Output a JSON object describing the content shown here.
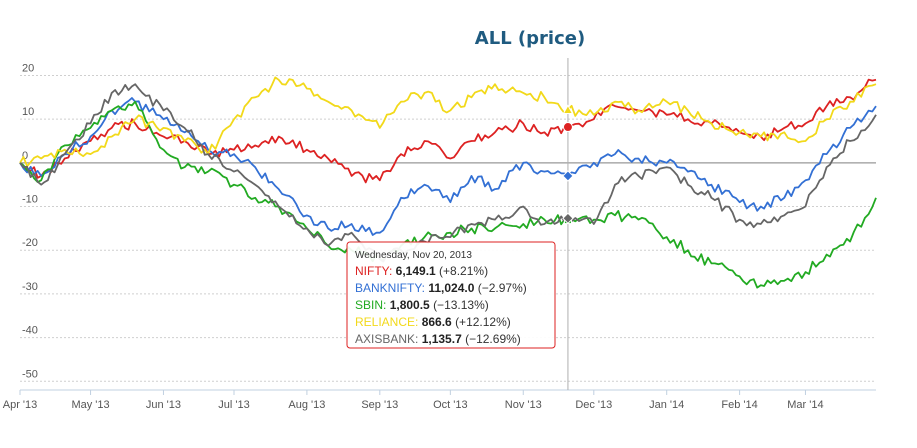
{
  "chart_data": {
    "type": "line",
    "title": "ALL (price)",
    "xlabel": "",
    "ylabel": "",
    "ylim": [
      -52,
      24
    ],
    "grid": "horizontal",
    "y_ticks": [
      20,
      10,
      0,
      -10,
      -20,
      -30,
      -40,
      -50
    ],
    "y_tick_labels": [
      "20",
      "10",
      "0",
      "-10",
      "-20",
      "-30",
      "-40",
      "-50"
    ],
    "x_range": [
      "2013-04-01",
      "2014-03-31"
    ],
    "x_ticks": [
      {
        "date": "2013-04-01",
        "label": "Apr '13"
      },
      {
        "date": "2013-05-01",
        "label": "May '13"
      },
      {
        "date": "2013-06-01",
        "label": "Jun '13"
      },
      {
        "date": "2013-07-01",
        "label": "Jul '13"
      },
      {
        "date": "2013-08-01",
        "label": "Aug '13"
      },
      {
        "date": "2013-09-01",
        "label": "Sep '13"
      },
      {
        "date": "2013-10-01",
        "label": "Oct '13"
      },
      {
        "date": "2013-11-01",
        "label": "Nov '13"
      },
      {
        "date": "2013-12-01",
        "label": "Dec '13"
      },
      {
        "date": "2014-01-01",
        "label": "Jan '14"
      },
      {
        "date": "2014-02-01",
        "label": "Feb '14"
      },
      {
        "date": "2014-03-01",
        "label": "Mar '14"
      }
    ],
    "series": [
      {
        "name": "NIFTY",
        "color": "#dd2222",
        "points": [
          [
            "2013-04-01",
            0
          ],
          [
            "2013-04-10",
            -3
          ],
          [
            "2013-04-20",
            1
          ],
          [
            "2013-05-01",
            5
          ],
          [
            "2013-05-10",
            8
          ],
          [
            "2013-05-20",
            9
          ],
          [
            "2013-06-01",
            6
          ],
          [
            "2013-06-10",
            5
          ],
          [
            "2013-06-20",
            2
          ],
          [
            "2013-07-01",
            3
          ],
          [
            "2013-07-10",
            4
          ],
          [
            "2013-07-20",
            6
          ],
          [
            "2013-08-01",
            3
          ],
          [
            "2013-08-10",
            1
          ],
          [
            "2013-08-20",
            -3
          ],
          [
            "2013-09-01",
            -4
          ],
          [
            "2013-09-10",
            2
          ],
          [
            "2013-09-20",
            5
          ],
          [
            "2013-10-01",
            1
          ],
          [
            "2013-10-10",
            5
          ],
          [
            "2013-10-20",
            7
          ],
          [
            "2013-11-01",
            9
          ],
          [
            "2013-11-10",
            7
          ],
          [
            "2013-11-20",
            8.2
          ],
          [
            "2013-12-01",
            10
          ],
          [
            "2013-12-10",
            13
          ],
          [
            "2013-12-20",
            12
          ],
          [
            "2014-01-01",
            11
          ],
          [
            "2014-01-10",
            10
          ],
          [
            "2014-01-20",
            9
          ],
          [
            "2014-02-01",
            7
          ],
          [
            "2014-02-10",
            6
          ],
          [
            "2014-02-20",
            8
          ],
          [
            "2014-03-01",
            9
          ],
          [
            "2014-03-10",
            13
          ],
          [
            "2014-03-20",
            15
          ],
          [
            "2014-03-31",
            19
          ]
        ]
      },
      {
        "name": "BANKNIFTY",
        "color": "#3370d4",
        "points": [
          [
            "2013-04-01",
            0
          ],
          [
            "2013-04-10",
            -3
          ],
          [
            "2013-04-20",
            2
          ],
          [
            "2013-05-01",
            6
          ],
          [
            "2013-05-10",
            12
          ],
          [
            "2013-05-20",
            14
          ],
          [
            "2013-06-01",
            10
          ],
          [
            "2013-06-10",
            7
          ],
          [
            "2013-06-20",
            3
          ],
          [
            "2013-07-01",
            2
          ],
          [
            "2013-07-10",
            -1
          ],
          [
            "2013-07-20",
            -6
          ],
          [
            "2013-08-01",
            -12
          ],
          [
            "2013-08-10",
            -15
          ],
          [
            "2013-08-20",
            -14
          ],
          [
            "2013-09-01",
            -16
          ],
          [
            "2013-09-10",
            -8
          ],
          [
            "2013-09-20",
            -5
          ],
          [
            "2013-10-01",
            -9
          ],
          [
            "2013-10-10",
            -3
          ],
          [
            "2013-10-20",
            -6
          ],
          [
            "2013-11-01",
            0
          ],
          [
            "2013-11-10",
            -2
          ],
          [
            "2013-11-20",
            -3
          ],
          [
            "2013-12-01",
            0
          ],
          [
            "2013-12-10",
            2
          ],
          [
            "2013-12-20",
            1
          ],
          [
            "2014-01-01",
            0
          ],
          [
            "2014-01-10",
            -2
          ],
          [
            "2014-01-20",
            -5
          ],
          [
            "2014-02-01",
            -9
          ],
          [
            "2014-02-10",
            -10
          ],
          [
            "2014-02-20",
            -8
          ],
          [
            "2014-03-01",
            -4
          ],
          [
            "2014-03-10",
            2
          ],
          [
            "2014-03-20",
            8
          ],
          [
            "2014-03-31",
            13
          ]
        ]
      },
      {
        "name": "SBIN",
        "color": "#22aa22",
        "points": [
          [
            "2013-04-01",
            0
          ],
          [
            "2013-04-10",
            -4
          ],
          [
            "2013-04-20",
            4
          ],
          [
            "2013-05-01",
            8
          ],
          [
            "2013-05-10",
            12
          ],
          [
            "2013-05-20",
            14
          ],
          [
            "2013-06-01",
            3
          ],
          [
            "2013-06-10",
            -1
          ],
          [
            "2013-06-20",
            -2
          ],
          [
            "2013-07-01",
            -5
          ],
          [
            "2013-07-10",
            -8
          ],
          [
            "2013-07-20",
            -10
          ],
          [
            "2013-08-01",
            -15
          ],
          [
            "2013-08-10",
            -19
          ],
          [
            "2013-08-20",
            -20
          ],
          [
            "2013-09-01",
            -22
          ],
          [
            "2013-09-10",
            -19
          ],
          [
            "2013-09-20",
            -17
          ],
          [
            "2013-10-01",
            -16
          ],
          [
            "2013-10-10",
            -15
          ],
          [
            "2013-10-20",
            -15
          ],
          [
            "2013-11-01",
            -14
          ],
          [
            "2013-11-10",
            -13
          ],
          [
            "2013-11-20",
            -13.1
          ],
          [
            "2013-12-01",
            -13
          ],
          [
            "2013-12-10",
            -12
          ],
          [
            "2013-12-20",
            -13
          ],
          [
            "2014-01-01",
            -17
          ],
          [
            "2014-01-10",
            -20
          ],
          [
            "2014-01-20",
            -23
          ],
          [
            "2014-02-01",
            -26
          ],
          [
            "2014-02-10",
            -28
          ],
          [
            "2014-02-20",
            -27
          ],
          [
            "2014-03-01",
            -25
          ],
          [
            "2014-03-10",
            -21
          ],
          [
            "2014-03-20",
            -18
          ],
          [
            "2014-03-31",
            -8
          ]
        ]
      },
      {
        "name": "RELIANCE",
        "color": "#f2d91a",
        "points": [
          [
            "2013-04-01",
            0
          ],
          [
            "2013-04-10",
            1
          ],
          [
            "2013-04-20",
            3
          ],
          [
            "2013-05-01",
            2
          ],
          [
            "2013-05-10",
            6
          ],
          [
            "2013-05-20",
            10
          ],
          [
            "2013-06-01",
            8
          ],
          [
            "2013-06-10",
            5
          ],
          [
            "2013-06-20",
            2
          ],
          [
            "2013-07-01",
            10
          ],
          [
            "2013-07-10",
            15
          ],
          [
            "2013-07-20",
            19
          ],
          [
            "2013-08-01",
            17
          ],
          [
            "2013-08-10",
            14
          ],
          [
            "2013-08-20",
            12
          ],
          [
            "2013-09-01",
            8
          ],
          [
            "2013-09-10",
            14
          ],
          [
            "2013-09-20",
            16
          ],
          [
            "2013-10-01",
            12
          ],
          [
            "2013-10-10",
            15
          ],
          [
            "2013-10-20",
            18
          ],
          [
            "2013-11-01",
            16
          ],
          [
            "2013-11-10",
            15
          ],
          [
            "2013-11-20",
            12.1
          ],
          [
            "2013-12-01",
            11
          ],
          [
            "2013-12-10",
            14
          ],
          [
            "2013-12-20",
            12
          ],
          [
            "2014-01-01",
            14
          ],
          [
            "2014-01-10",
            12
          ],
          [
            "2014-01-20",
            9
          ],
          [
            "2014-02-01",
            7
          ],
          [
            "2014-02-10",
            6
          ],
          [
            "2014-02-20",
            7
          ],
          [
            "2014-03-01",
            5
          ],
          [
            "2014-03-10",
            10
          ],
          [
            "2014-03-20",
            14
          ],
          [
            "2014-03-31",
            18
          ]
        ]
      },
      {
        "name": "AXISBANK",
        "color": "#666666",
        "points": [
          [
            "2013-04-01",
            0
          ],
          [
            "2013-04-10",
            -5
          ],
          [
            "2013-04-20",
            2
          ],
          [
            "2013-05-01",
            9
          ],
          [
            "2013-05-10",
            16
          ],
          [
            "2013-05-20",
            18
          ],
          [
            "2013-06-01",
            12
          ],
          [
            "2013-06-10",
            8
          ],
          [
            "2013-06-20",
            2
          ],
          [
            "2013-07-01",
            -2
          ],
          [
            "2013-07-10",
            -5
          ],
          [
            "2013-07-20",
            -10
          ],
          [
            "2013-08-01",
            -15
          ],
          [
            "2013-08-10",
            -19
          ],
          [
            "2013-08-20",
            -16
          ],
          [
            "2013-09-01",
            -22
          ],
          [
            "2013-09-10",
            -20
          ],
          [
            "2013-09-20",
            -18
          ],
          [
            "2013-10-01",
            -17
          ],
          [
            "2013-10-10",
            -14
          ],
          [
            "2013-10-20",
            -13
          ],
          [
            "2013-11-01",
            -10
          ],
          [
            "2013-11-10",
            -14
          ],
          [
            "2013-11-20",
            -12.7
          ],
          [
            "2013-12-01",
            -14
          ],
          [
            "2013-12-10",
            -5
          ],
          [
            "2013-12-20",
            -3
          ],
          [
            "2014-01-01",
            -1
          ],
          [
            "2014-01-10",
            -5
          ],
          [
            "2014-01-20",
            -8
          ],
          [
            "2014-02-01",
            -13
          ],
          [
            "2014-02-10",
            -14
          ],
          [
            "2014-02-20",
            -12
          ],
          [
            "2014-03-01",
            -10
          ],
          [
            "2014-03-10",
            -1
          ],
          [
            "2014-03-20",
            5
          ],
          [
            "2014-03-31",
            11
          ]
        ]
      }
    ],
    "tooltip": {
      "date": "2013-11-20",
      "header": "Wednesday, Nov 20, 2013",
      "rows": [
        {
          "series": "NIFTY",
          "label": "NIFTY:",
          "value": "6,149.1",
          "change": "(+8.21%)",
          "color": "#dd2222"
        },
        {
          "series": "BANKNIFTY",
          "label": "BANKNIFTY:",
          "value": "11,024.0",
          "change": "(−2.97%)",
          "color": "#3370d4"
        },
        {
          "series": "SBIN",
          "label": "SBIN:",
          "value": "1,800.5",
          "change": "(−13.13%)",
          "color": "#22aa22"
        },
        {
          "series": "RELIANCE",
          "label": "RELIANCE:",
          "value": "866.6",
          "change": "(+12.12%)",
          "color": "#f2d91a"
        },
        {
          "series": "AXISBANK",
          "label": "AXISBANK:",
          "value": "1,135.7",
          "change": "(−12.69%)",
          "color": "#666666"
        }
      ],
      "border_color": "#dd2222"
    }
  }
}
